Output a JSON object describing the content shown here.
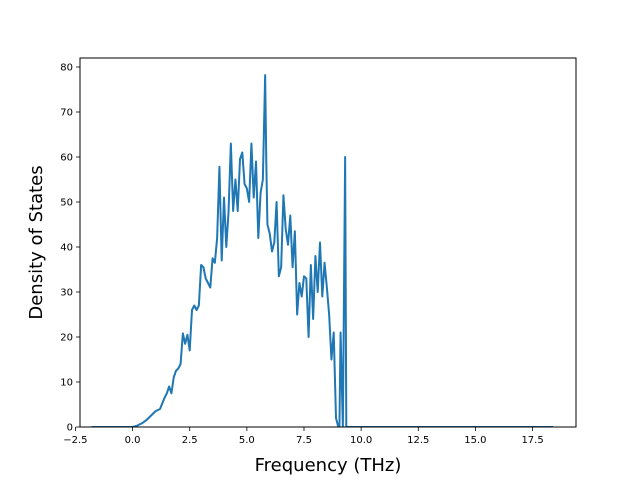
{
  "chart_data": {
    "type": "line",
    "title": "",
    "xlabel": "Frequency (THz)",
    "ylabel": "Density of States",
    "xlim": [
      -2.3,
      19.4
    ],
    "ylim": [
      0,
      82
    ],
    "xticks": [
      -2.5,
      0.0,
      2.5,
      5.0,
      7.5,
      10.0,
      12.5,
      15.0,
      17.5
    ],
    "xtick_labels": [
      "−2.5",
      "0.0",
      "2.5",
      "5.0",
      "7.5",
      "10.0",
      "12.5",
      "15.0",
      "17.5"
    ],
    "yticks": [
      0,
      10,
      20,
      30,
      40,
      50,
      60,
      70,
      80
    ],
    "ytick_labels": [
      "0",
      "10",
      "20",
      "30",
      "40",
      "50",
      "60",
      "70",
      "80"
    ],
    "grid": false,
    "legend": "none",
    "color": "#1f77b4",
    "series": [
      {
        "x": [
          -1.8,
          0.0,
          0.2,
          0.4,
          0.6,
          0.8,
          1.0,
          1.2,
          1.4,
          1.5,
          1.6,
          1.7,
          1.8,
          1.9,
          2.0,
          2.1,
          2.2,
          2.3,
          2.4,
          2.5,
          2.6,
          2.7,
          2.8,
          2.9,
          3.0,
          3.1,
          3.2,
          3.3,
          3.4,
          3.5,
          3.6,
          3.7,
          3.8,
          3.9,
          4.0,
          4.1,
          4.2,
          4.3,
          4.4,
          4.5,
          4.6,
          4.7,
          4.8,
          4.9,
          5.0,
          5.1,
          5.2,
          5.3,
          5.4,
          5.5,
          5.6,
          5.7,
          5.8,
          5.85,
          5.9,
          6.0,
          6.1,
          6.2,
          6.3,
          6.4,
          6.5,
          6.6,
          6.7,
          6.8,
          6.9,
          7.0,
          7.1,
          7.2,
          7.3,
          7.4,
          7.5,
          7.6,
          7.7,
          7.8,
          7.9,
          8.0,
          8.1,
          8.2,
          8.3,
          8.4,
          8.5,
          8.6,
          8.7,
          8.8,
          8.9,
          9.0,
          9.05,
          9.1,
          9.2,
          9.3,
          9.35,
          9.4,
          9.45,
          9.5,
          9.6,
          10.0,
          12.5,
          15.0,
          18.4
        ],
        "y": [
          0,
          0,
          0.3,
          0.8,
          1.5,
          2.5,
          3.5,
          4.0,
          6.5,
          7.5,
          9.0,
          7.5,
          11.0,
          12.5,
          13.0,
          14.0,
          20.8,
          18.5,
          20.5,
          17.0,
          26.0,
          27.0,
          26.0,
          27.0,
          36.0,
          35.5,
          33.0,
          32.0,
          31.0,
          37.5,
          36.5,
          42.0,
          57.8,
          37.0,
          51.0,
          40.0,
          48.0,
          63.0,
          48.0,
          55.0,
          48.0,
          59.5,
          61.0,
          54.0,
          53.0,
          50.0,
          63.0,
          51.0,
          59.0,
          42.0,
          52.0,
          55.0,
          78.2,
          59.0,
          45.0,
          43.0,
          39.0,
          41.0,
          50.0,
          33.5,
          35.5,
          51.5,
          44.0,
          40.5,
          47.0,
          35.5,
          43.5,
          25.0,
          32.0,
          29.0,
          33.5,
          33.0,
          20.0,
          36.0,
          24.0,
          38.0,
          30.0,
          41.0,
          29.0,
          36.5,
          31.0,
          25.0,
          15.0,
          21.0,
          2.0,
          0,
          0,
          21.0,
          0,
          60.0,
          0,
          0,
          0,
          0,
          0,
          0,
          0,
          0,
          0
        ]
      }
    ]
  }
}
